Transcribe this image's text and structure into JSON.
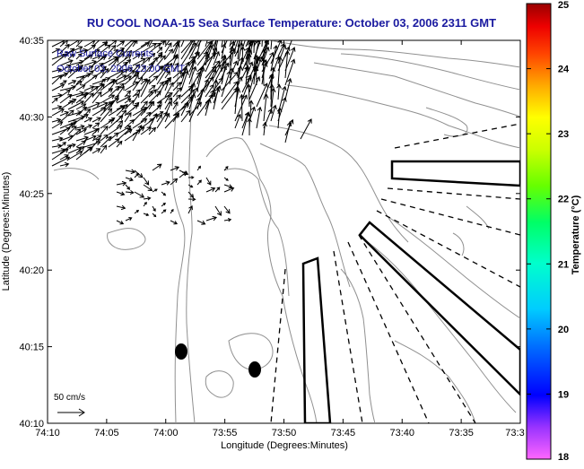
{
  "title": "RU COOL  NOAA-15  Sea Surface Temperature:  October 03, 2006 2311 GMT",
  "overlay": {
    "line1": "Raw Surface Currents",
    "line2": "October 03, 2006 23:00 GMT"
  },
  "axes": {
    "xlabel": "Longitude (Degrees:Minutes)",
    "ylabel": "Latitude (Degrees:Minutes)",
    "x_ticks": [
      "74:10",
      "74:05",
      "74:00",
      "73:55",
      "73:50",
      "73:45",
      "73:40",
      "73:35",
      "73:3"
    ],
    "y_ticks": [
      "40:35",
      "40:30",
      "40:25",
      "40:20",
      "40:15",
      "40:10"
    ]
  },
  "scale": {
    "label": "50 cm/s"
  },
  "colorbar": {
    "label": "Temperature (°C)",
    "ticks": [
      "25",
      "24",
      "23",
      "22",
      "21",
      "20",
      "19",
      "18"
    ],
    "range": [
      18,
      25
    ]
  },
  "colors": {
    "title": "#1a1aa0",
    "overlay_text": "#1a1aa0",
    "contour": "#909090",
    "vector": "#000000"
  }
}
